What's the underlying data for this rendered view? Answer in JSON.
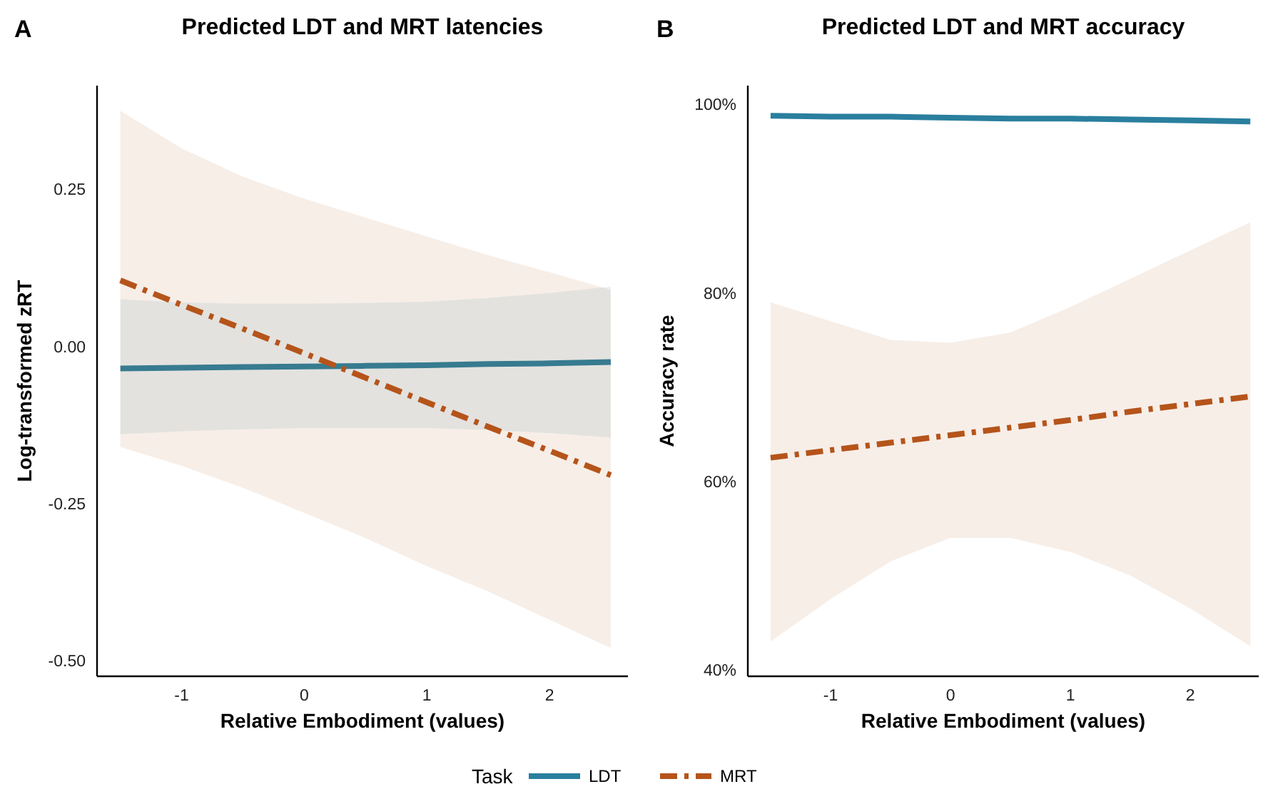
{
  "chart_data": [
    {
      "type": "line",
      "title": "Predicted LDT and MRT latencies",
      "xlabel": "Relative Embodiment (values)",
      "ylabel": "Log-transformed zRT",
      "annotations": [
        "A"
      ],
      "legend_title": "Task",
      "legend": "bottom",
      "grid": false,
      "xlim": [
        -1.69,
        2.64
      ],
      "ylim": [
        -0.525,
        0.415
      ],
      "xticks": [
        -1,
        0,
        1,
        2
      ],
      "yticks": [
        {
          "value": -0.5,
          "label": "-0.50"
        },
        {
          "value": -0.25,
          "label": "-0.25"
        },
        {
          "value": 0,
          "label": "0.00"
        },
        {
          "value": 0.25,
          "label": "0.25"
        }
      ],
      "x": [
        -1.5,
        -1,
        -0.5,
        0,
        0.5,
        1,
        1.5,
        2,
        2.5
      ],
      "series": [
        {
          "name": "LDT",
          "color": "#2a7f9e",
          "line_style": "solid",
          "values": [
            -0.035,
            -0.034,
            -0.033,
            -0.032,
            -0.031,
            -0.03,
            -0.028,
            -0.027,
            -0.025
          ],
          "lower": [
            -0.14,
            -0.135,
            -0.132,
            -0.13,
            -0.13,
            -0.13,
            -0.133,
            -0.138,
            -0.145
          ],
          "upper": [
            0.075,
            0.07,
            0.068,
            0.068,
            0.069,
            0.071,
            0.077,
            0.085,
            0.095
          ]
        },
        {
          "name": "MRT",
          "color": "#b5541a",
          "line_style": "dashed",
          "values": [
            0.105,
            0.066,
            0.028,
            -0.011,
            -0.05,
            -0.089,
            -0.128,
            -0.166,
            -0.205
          ],
          "lower": [
            -0.16,
            -0.19,
            -0.225,
            -0.265,
            -0.305,
            -0.35,
            -0.39,
            -0.435,
            -0.48
          ],
          "upper": [
            0.375,
            0.315,
            0.27,
            0.235,
            0.205,
            0.175,
            0.145,
            0.118,
            0.09
          ]
        }
      ]
    },
    {
      "type": "line",
      "title": "Predicted LDT and MRT accuracy",
      "xlabel": "Relative Embodiment (values)",
      "ylabel": "Accuracy rate",
      "annotations": [
        "B"
      ],
      "grid": false,
      "xlim": [
        -1.69,
        2.57
      ],
      "ylim": [
        39.3,
        102
      ],
      "xticks": [
        -1,
        0,
        1,
        2
      ],
      "yticks": [
        {
          "value": 40,
          "label": "40%"
        },
        {
          "value": 60,
          "label": "60%"
        },
        {
          "value": 80,
          "label": "80%"
        },
        {
          "value": 100,
          "label": "100%"
        }
      ],
      "x": [
        -1.5,
        -1,
        -0.5,
        0,
        0.5,
        1,
        1.5,
        2,
        2.5
      ],
      "series": [
        {
          "color": "#2a7f9e",
          "line_style": "solid",
          "values": [
            98.8,
            98.7,
            98.7,
            98.6,
            98.5,
            98.5,
            98.4,
            98.3,
            98.2
          ],
          "lower": [
            98.6,
            98.5,
            98.5,
            98.4,
            98.3,
            98.3,
            98.1,
            98,
            97.8
          ],
          "upper": [
            99,
            98.9,
            98.9,
            98.8,
            98.7,
            98.7,
            98.6,
            98.5,
            98.4
          ]
        },
        {
          "color": "#b5541a",
          "line_style": "dashed",
          "values": [
            62.5,
            63.3,
            64.1,
            64.9,
            65.7,
            66.5,
            67.4,
            68.2,
            69
          ],
          "lower": [
            43,
            47.5,
            51.5,
            54,
            54,
            52.5,
            50,
            46.5,
            42.5
          ],
          "upper": [
            79,
            77,
            75,
            74.7,
            75.8,
            78.5,
            81.5,
            84.5,
            87.5
          ]
        }
      ]
    }
  ]
}
